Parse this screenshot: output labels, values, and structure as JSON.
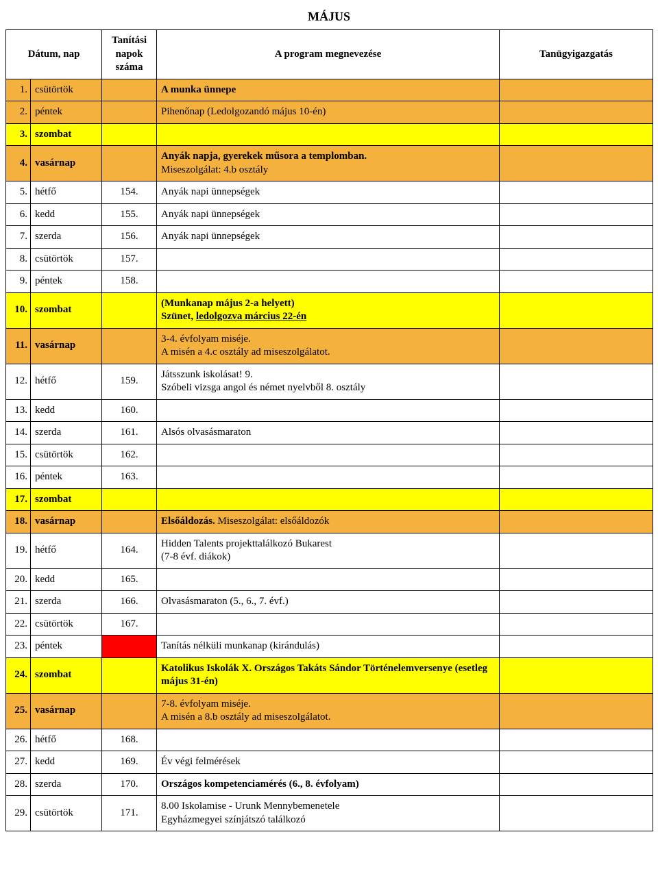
{
  "title": "MÁJUS",
  "headers": {
    "date": "Dátum, nap",
    "count": "Tanítási napok száma",
    "program": "A program megnevezése",
    "admin": "Tanügyigazgatás"
  },
  "colors": {
    "yellow": "#ffff00",
    "orange": "#f4b13e",
    "red": "#ff0000",
    "border": "#000000",
    "bg": "#ffffff"
  },
  "font_family": "Times New Roman",
  "rows": [
    {
      "n": "1.",
      "day": "csütörtök",
      "cnt": "",
      "prog": "A munka ünnepe",
      "prog_bold": true,
      "numday_color": "orange",
      "cnt_color": "orange",
      "prog_color": "orange",
      "adm_color": "orange"
    },
    {
      "n": "2.",
      "day": "péntek",
      "cnt": "",
      "prog": "Pihenőnap (Ledolgozandó május 10-én)",
      "numday_color": "orange",
      "cnt_color": "orange",
      "prog_color": "orange",
      "adm_color": "orange"
    },
    {
      "n": "3.",
      "day": "szombat",
      "cnt": "",
      "prog": "",
      "numday_bold": true,
      "numday_color": "yellow",
      "cnt_color": "yellow",
      "prog_color": "yellow",
      "adm_color": "yellow"
    },
    {
      "n": "4.",
      "day": "vasárnap",
      "cnt": "",
      "prog_html": "<span class=\"bold\">Anyák napja, gyerekek műsora a templomban.</span><br>Miseszolgálat: 4.b osztály",
      "numday_bold": true,
      "numday_color": "orange",
      "cnt_color": "orange",
      "prog_color": "orange",
      "adm_color": "orange"
    },
    {
      "n": "5.",
      "day": "hétfő",
      "cnt": "154.",
      "prog": "Anyák napi ünnepségek"
    },
    {
      "n": "6.",
      "day": "kedd",
      "cnt": "155.",
      "prog": "Anyák napi ünnepségek"
    },
    {
      "n": "7.",
      "day": "szerda",
      "cnt": "156.",
      "prog": "Anyák napi ünnepségek"
    },
    {
      "n": "8.",
      "day": "csütörtök",
      "cnt": "157.",
      "prog": ""
    },
    {
      "n": "9.",
      "day": "péntek",
      "cnt": "158.",
      "prog": ""
    },
    {
      "n": "10.",
      "day": "szombat",
      "cnt": "",
      "prog_html": "<span class=\"bold\">(Munkanap május 2-a helyett)<br>Szünet, <span class=\"underline\">ledolgozva március 22-én</span></span>",
      "numday_bold": true,
      "numday_color": "yellow",
      "cnt_color": "yellow",
      "prog_color": "yellow",
      "adm_color": "yellow"
    },
    {
      "n": "11.",
      "day": "vasárnap",
      "cnt": "",
      "prog_html": "3-4. évfolyam miséje.<br>A misén a 4.c osztály ad miseszolgálatot.",
      "numday_bold": true,
      "numday_color": "orange",
      "cnt_color": "orange",
      "prog_color": "orange",
      "adm_color": "orange"
    },
    {
      "n": "12.",
      "day": "hétfő",
      "cnt": "159.",
      "prog_html": "Játsszunk iskolásat! 9.<br>Szóbeli vizsga angol és német nyelvből 8. osztály"
    },
    {
      "n": "13.",
      "day": "kedd",
      "cnt": "160.",
      "prog": ""
    },
    {
      "n": "14.",
      "day": "szerda",
      "cnt": "161.",
      "prog": "Alsós olvasásmaraton"
    },
    {
      "n": "15.",
      "day": "csütörtök",
      "cnt": "162.",
      "prog": ""
    },
    {
      "n": "16.",
      "day": "péntek",
      "cnt": "163.",
      "prog": ""
    },
    {
      "n": "17.",
      "day": "szombat",
      "cnt": "",
      "prog": "",
      "numday_bold": true,
      "numday_color": "yellow",
      "cnt_color": "yellow",
      "prog_color": "yellow",
      "adm_color": "yellow"
    },
    {
      "n": "18.",
      "day": "vasárnap",
      "cnt": "",
      "prog_html": "<span class=\"bold\">Elsőáldozás.</span> Miseszolgálat: elsőáldozók",
      "numday_bold": true,
      "numday_color": "orange",
      "cnt_color": "orange",
      "prog_color": "orange",
      "adm_color": "orange"
    },
    {
      "n": "19.",
      "day": "hétfő",
      "cnt": "164.",
      "prog_html": "Hidden Talents projekttalálkozó Bukarest<br>(7-8 évf. diákok)"
    },
    {
      "n": "20.",
      "day": "kedd",
      "cnt": "165.",
      "prog": ""
    },
    {
      "n": "21.",
      "day": "szerda",
      "cnt": "166.",
      "prog": "Olvasásmaraton (5., 6., 7. évf.)"
    },
    {
      "n": "22.",
      "day": "csütörtök",
      "cnt": "167.",
      "prog": ""
    },
    {
      "n": "23.",
      "day": "péntek",
      "cnt": "",
      "prog": "Tanítás nélküli munkanap (kirándulás)",
      "cnt_color": "red"
    },
    {
      "n": "24.",
      "day": "szombat",
      "cnt": "",
      "prog_html": "<span class=\"bold\">Katolikus Iskolák X. Országos Takáts Sándor Történelemversenye (esetleg május 31-én)</span>",
      "numday_bold": true,
      "numday_color": "yellow",
      "cnt_color": "yellow",
      "prog_color": "yellow",
      "adm_color": "yellow"
    },
    {
      "n": "25.",
      "day": "vasárnap",
      "cnt": "",
      "prog_html": "7-8. évfolyam miséje.<br>A misén a 8.b osztály ad miseszolgálatot.",
      "numday_bold": true,
      "numday_color": "orange",
      "cnt_color": "orange",
      "prog_color": "orange",
      "adm_color": "orange"
    },
    {
      "n": "26.",
      "day": "hétfő",
      "cnt": "168.",
      "prog": ""
    },
    {
      "n": "27.",
      "day": "kedd",
      "cnt": "169.",
      "prog": "Év végi felmérések"
    },
    {
      "n": "28.",
      "day": "szerda",
      "cnt": "170.",
      "prog": "Országos kompetenciamérés (6., 8. évfolyam)",
      "prog_bold": true
    },
    {
      "n": "29.",
      "day": "csütörtök",
      "cnt": "171.",
      "prog_html": "8.00 Iskolamise - Urunk Mennybemenetele<br>Egyházmegyei színjátszó találkozó"
    }
  ]
}
